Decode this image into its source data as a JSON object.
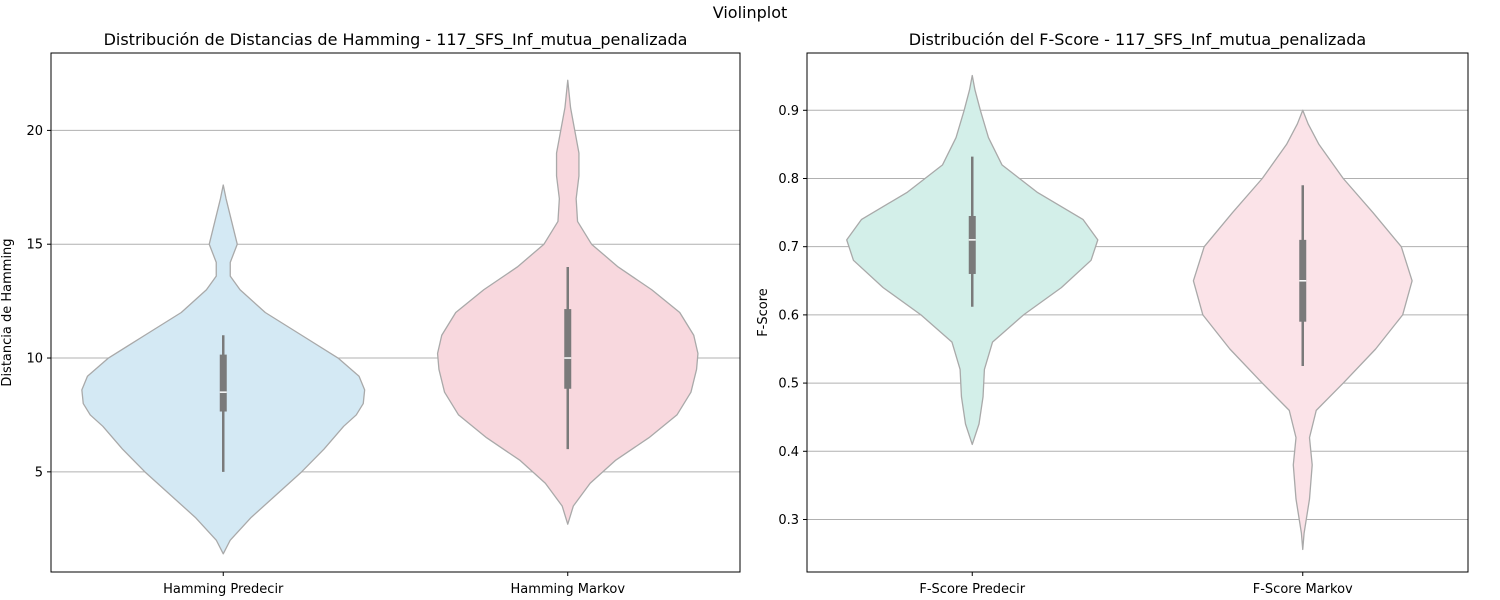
{
  "figure": {
    "suptitle": "Violinplot"
  },
  "chart_data": [
    {
      "type": "violin",
      "title": "Distribución de Distancias de Hamming - 117_SFS_Inf_mutua_penalizada",
      "xlabel": "",
      "ylabel": "Distancia de Hamming",
      "ylim": [
        0.6,
        23.4
      ],
      "yticks": [
        5,
        10,
        15,
        20
      ],
      "grid": "y",
      "categories": [
        "Hamming Predecir",
        "Hamming Markov"
      ],
      "violins": [
        {
          "category": "Hamming Predecir",
          "color": "#d4e9f4",
          "box": {
            "q1": 7.65,
            "median": 8.5,
            "q3": 10.15,
            "whisker_low": 5.0,
            "whisker_high": 11.0
          },
          "density": [
            [
              1.4,
              0.0
            ],
            [
              2,
              0.05
            ],
            [
              3,
              0.2
            ],
            [
              4,
              0.38
            ],
            [
              5,
              0.56
            ],
            [
              6,
              0.72
            ],
            [
              7,
              0.86
            ],
            [
              7.5,
              0.95
            ],
            [
              8,
              1.0
            ],
            [
              8.6,
              1.01
            ],
            [
              9.2,
              0.97
            ],
            [
              10,
              0.82
            ],
            [
              11,
              0.56
            ],
            [
              12,
              0.3
            ],
            [
              13,
              0.12
            ],
            [
              13.6,
              0.05
            ],
            [
              14.2,
              0.05
            ],
            [
              15,
              0.1
            ],
            [
              16,
              0.06
            ],
            [
              17,
              0.02
            ],
            [
              17.6,
              0.0
            ]
          ]
        },
        {
          "category": "Hamming Markov",
          "color": "#f8d8de",
          "box": {
            "q1": 8.65,
            "median": 10.0,
            "q3": 12.15,
            "whisker_low": 6.0,
            "whisker_high": 14.0
          },
          "density": [
            [
              2.7,
              0.0
            ],
            [
              3.5,
              0.04
            ],
            [
              4.5,
              0.16
            ],
            [
              5.5,
              0.34
            ],
            [
              6.5,
              0.58
            ],
            [
              7.5,
              0.78
            ],
            [
              8.5,
              0.88
            ],
            [
              9.5,
              0.92
            ],
            [
              10.2,
              0.93
            ],
            [
              11,
              0.9
            ],
            [
              12,
              0.8
            ],
            [
              13,
              0.6
            ],
            [
              14,
              0.36
            ],
            [
              15,
              0.17
            ],
            [
              16,
              0.07
            ],
            [
              17,
              0.06
            ],
            [
              18,
              0.08
            ],
            [
              19,
              0.08
            ],
            [
              20,
              0.05
            ],
            [
              21,
              0.02
            ],
            [
              22.2,
              0.0
            ]
          ]
        }
      ]
    },
    {
      "type": "violin",
      "title": "Distribución del F-Score - 117_SFS_Inf_mutua_penalizada",
      "xlabel": "",
      "ylabel": "F-Score",
      "ylim": [
        0.223,
        0.984
      ],
      "yticks": [
        0.3,
        0.4,
        0.5,
        0.6,
        0.7,
        0.8,
        0.9
      ],
      "grid": "y",
      "categories": [
        "F-Score Predecir",
        "F-Score Markov"
      ],
      "violins": [
        {
          "category": "F-Score Predecir",
          "color": "#d3efe9",
          "box": {
            "q1": 0.66,
            "median": 0.71,
            "q3": 0.745,
            "whisker_low": 0.612,
            "whisker_high": 0.832
          },
          "density": [
            [
              0.41,
              0.0
            ],
            [
              0.44,
              0.05
            ],
            [
              0.48,
              0.08
            ],
            [
              0.52,
              0.09
            ],
            [
              0.56,
              0.15
            ],
            [
              0.6,
              0.38
            ],
            [
              0.64,
              0.66
            ],
            [
              0.68,
              0.88
            ],
            [
              0.71,
              0.93
            ],
            [
              0.74,
              0.82
            ],
            [
              0.78,
              0.48
            ],
            [
              0.82,
              0.22
            ],
            [
              0.86,
              0.12
            ],
            [
              0.9,
              0.06
            ],
            [
              0.93,
              0.02
            ],
            [
              0.951,
              0.0
            ]
          ]
        },
        {
          "category": "F-Score Markov",
          "color": "#fbe3e8",
          "box": {
            "q1": 0.59,
            "median": 0.65,
            "q3": 0.71,
            "whisker_low": 0.525,
            "whisker_high": 0.79
          },
          "density": [
            [
              0.256,
              0.0
            ],
            [
              0.28,
              0.01
            ],
            [
              0.33,
              0.05
            ],
            [
              0.38,
              0.07
            ],
            [
              0.42,
              0.05
            ],
            [
              0.46,
              0.1
            ],
            [
              0.5,
              0.3
            ],
            [
              0.55,
              0.54
            ],
            [
              0.6,
              0.74
            ],
            [
              0.65,
              0.81
            ],
            [
              0.7,
              0.73
            ],
            [
              0.75,
              0.52
            ],
            [
              0.8,
              0.3
            ],
            [
              0.85,
              0.12
            ],
            [
              0.88,
              0.04
            ],
            [
              0.9,
              0.0
            ]
          ]
        }
      ]
    }
  ]
}
